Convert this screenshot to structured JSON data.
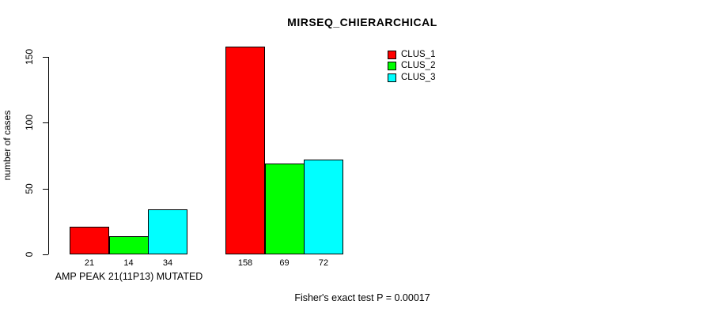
{
  "chart_data": {
    "type": "bar",
    "title": "MIRSEQ_CHIERARCHICAL",
    "ylabel": "number of cases",
    "xlabel": "",
    "ylim": [
      0,
      150
    ],
    "yticks": [
      0,
      50,
      100,
      150
    ],
    "grid": false,
    "legend_position": "top-right",
    "categories": [
      "AMP PEAK 21(11P13) MUTATED",
      ""
    ],
    "series": [
      {
        "name": "CLUS_1",
        "color": "#FF0000",
        "values": [
          21,
          158
        ]
      },
      {
        "name": "CLUS_2",
        "color": "#00FF00",
        "values": [
          14,
          69
        ]
      },
      {
        "name": "CLUS_3",
        "color": "#00FFFF",
        "values": [
          34,
          72
        ]
      }
    ],
    "bar_value_labels": [
      [
        21,
        14,
        34
      ],
      [
        158,
        69,
        72
      ]
    ],
    "footer": "Fisher's exact test P = 0.00017"
  },
  "colors": {
    "background": "#FFFFFF",
    "axis": "#000000",
    "text": "#000000"
  }
}
